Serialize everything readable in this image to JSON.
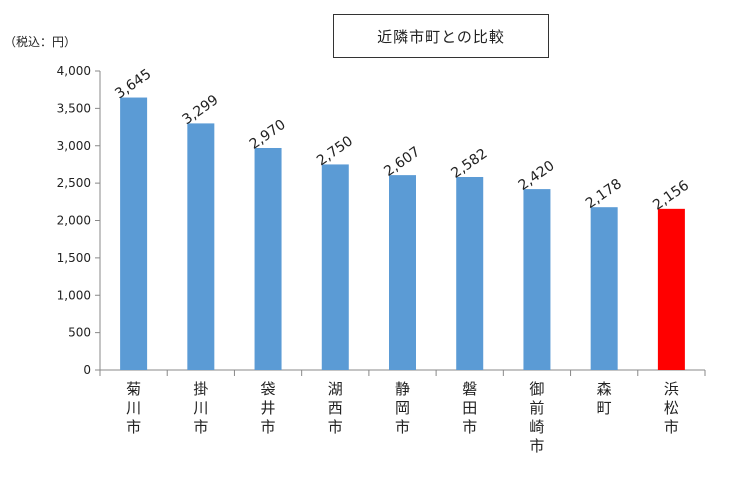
{
  "chart_data": {
    "type": "bar",
    "title": "近隣市町との比較",
    "ylabel": "（税込：円）",
    "ylim": [
      0,
      4000
    ],
    "yticks": [
      "0",
      "500",
      "1,000",
      "1,500",
      "2,000",
      "2,500",
      "3,000",
      "3,500",
      "4,000"
    ],
    "categories": [
      "菊川市",
      "掛川市",
      "袋井市",
      "湖西市",
      "静岡市",
      "磐田市",
      "御前崎市",
      "森町",
      "浜松市"
    ],
    "values": [
      3645,
      3299,
      2970,
      2750,
      2607,
      2582,
      2420,
      2178,
      2156
    ],
    "data_labels": [
      "3,645",
      "3,299",
      "2,970",
      "2,750",
      "2,607",
      "2,582",
      "2,420",
      "2,178",
      "2,156"
    ],
    "bar_colors": [
      "#5b9bd5",
      "#5b9bd5",
      "#5b9bd5",
      "#5b9bd5",
      "#5b9bd5",
      "#5b9bd5",
      "#5b9bd5",
      "#5b9bd5",
      "#ff0000"
    ],
    "grid": false,
    "legend": "none"
  }
}
